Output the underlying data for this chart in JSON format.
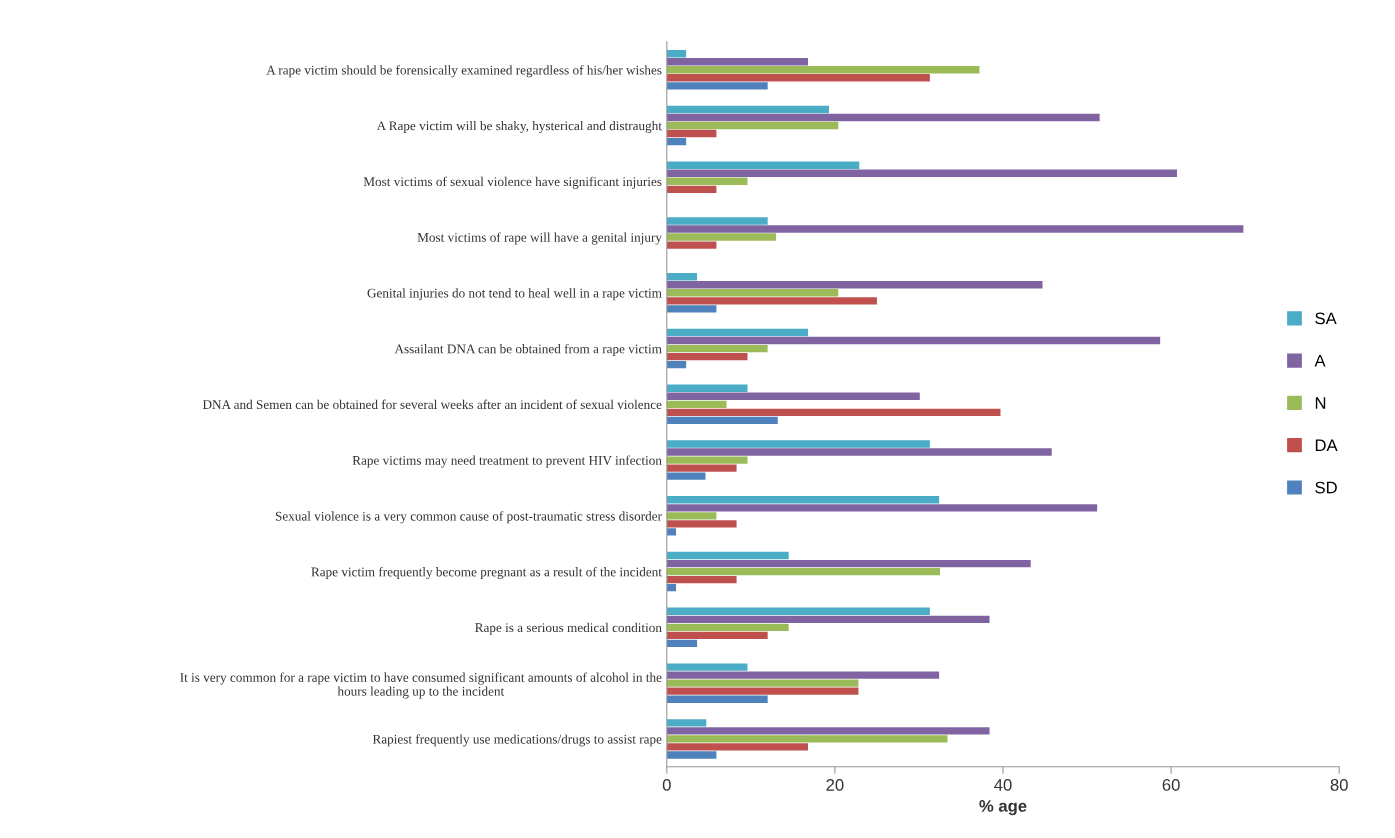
{
  "chart_data": {
    "type": "bar",
    "orientation": "horizontal",
    "xlabel": "% age",
    "categories": [
      "A rape victim should be forensically examined regardless of his/her wishes",
      "A Rape victim will be shaky, hysterical and distraught",
      "Most victims of sexual violence have significant injuries",
      "Most victims of rape will have a genital injury",
      "Genital injuries do not tend to heal well in a rape victim",
      "Assailant DNA can be obtained from a rape victim",
      "DNA and Semen can be obtained for several weeks after an incident of sexual violence",
      "Rape victims may need treatment to prevent HIV infection",
      "Sexual violence is a very common cause of post-traumatic stress disorder",
      "Rape victim frequently become pregnant as a result of the incident",
      "Rape is a serious medical condition",
      "It is very common for a rape victim to have consumed significant amounts of alcohol in the\nhours leading up to the incident",
      "Rapiest frequently use medications/drugs to assist rape"
    ],
    "series": [
      {
        "name": "SA",
        "color": "#4bacc6",
        "values": [
          2.3,
          19.3,
          22.9,
          12.0,
          3.6,
          16.8,
          9.6,
          31.3,
          32.4,
          14.5,
          31.3,
          9.6,
          4.7
        ]
      },
      {
        "name": "A",
        "color": "#8064a2",
        "values": [
          16.8,
          51.5,
          60.7,
          68.6,
          44.7,
          58.7,
          30.1,
          45.8,
          51.2,
          43.3,
          38.4,
          32.4,
          38.4
        ]
      },
      {
        "name": "N",
        "color": "#9bbb59",
        "values": [
          37.2,
          20.4,
          9.6,
          13.0,
          20.4,
          12.0,
          7.1,
          9.6,
          5.9,
          32.5,
          14.5,
          22.8,
          33.4
        ]
      },
      {
        "name": "DA",
        "color": "#c0504d",
        "values": [
          31.3,
          5.9,
          5.9,
          5.9,
          25.0,
          9.6,
          39.7,
          8.3,
          8.3,
          8.3,
          12.0,
          22.8,
          16.8
        ]
      },
      {
        "name": "SD",
        "color": "#4f81bd",
        "values": [
          12.0,
          2.3,
          0,
          0,
          5.9,
          2.3,
          13.2,
          4.6,
          1.1,
          1.1,
          3.6,
          12.0,
          5.9
        ]
      }
    ],
    "xlim": [
      0,
      80
    ],
    "xticks": [
      0,
      20,
      40,
      60,
      80
    ],
    "grid": false,
    "legend": "right"
  }
}
